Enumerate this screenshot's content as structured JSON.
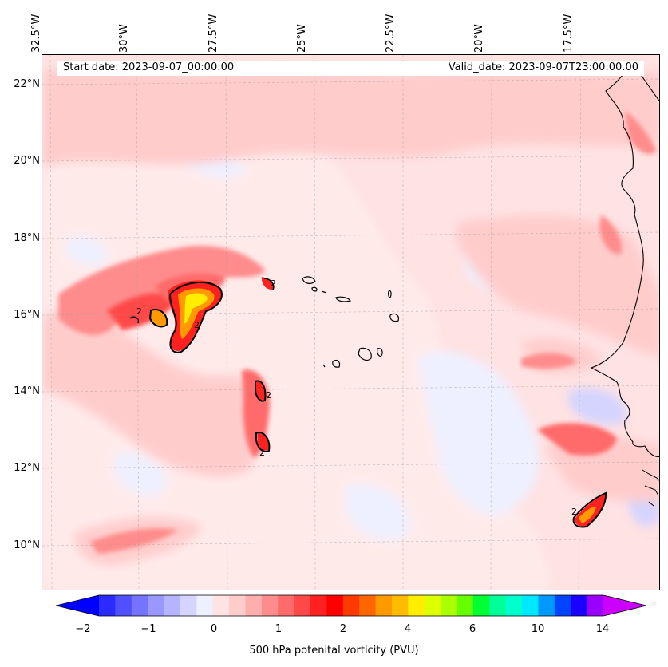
{
  "map": {
    "start_date": "Start date: 2023-09-07_00:00:00",
    "valid_date": "Valid_date: 2023-09-07T23:00:00.00",
    "longitude_labels": [
      "32.5°W",
      "30°W",
      "27.5°W",
      "25°W",
      "22.5°W",
      "20°W",
      "17.5°W"
    ],
    "latitude_labels": [
      "22°N",
      "20°N",
      "18°N",
      "16°N",
      "14°N",
      "12°N",
      "10°N"
    ],
    "contour_level_label": "2",
    "extent": {
      "lon_min": -33.0,
      "lon_max": -15.5,
      "lat_min": 8.9,
      "lat_max": 22.8
    }
  },
  "colorbar": {
    "title": "500 hPa potenital vorticity (PVU)",
    "tick_labels": [
      "−2",
      "−1",
      "0",
      "1",
      "2",
      "4",
      "6",
      "10",
      "14"
    ],
    "colors": [
      "#0000ff",
      "#2b2bff",
      "#5050ff",
      "#7474ff",
      "#9898ff",
      "#b4b4ff",
      "#d4d4ff",
      "#eef0ff",
      "#ffe2e2",
      "#ffcccc",
      "#ffaeae",
      "#ff8c8c",
      "#ff6a6a",
      "#ff4848",
      "#ff2020",
      "#ff0000",
      "#ff3a00",
      "#ff6600",
      "#ff9900",
      "#ffbb00",
      "#ffee00",
      "#ddff00",
      "#aaff00",
      "#66ff00",
      "#00ff33",
      "#00ff99",
      "#00ffcc",
      "#00e8ff",
      "#0099ff",
      "#0044ff",
      "#1a00ff",
      "#9900ff",
      "#cc00ff"
    ]
  }
}
